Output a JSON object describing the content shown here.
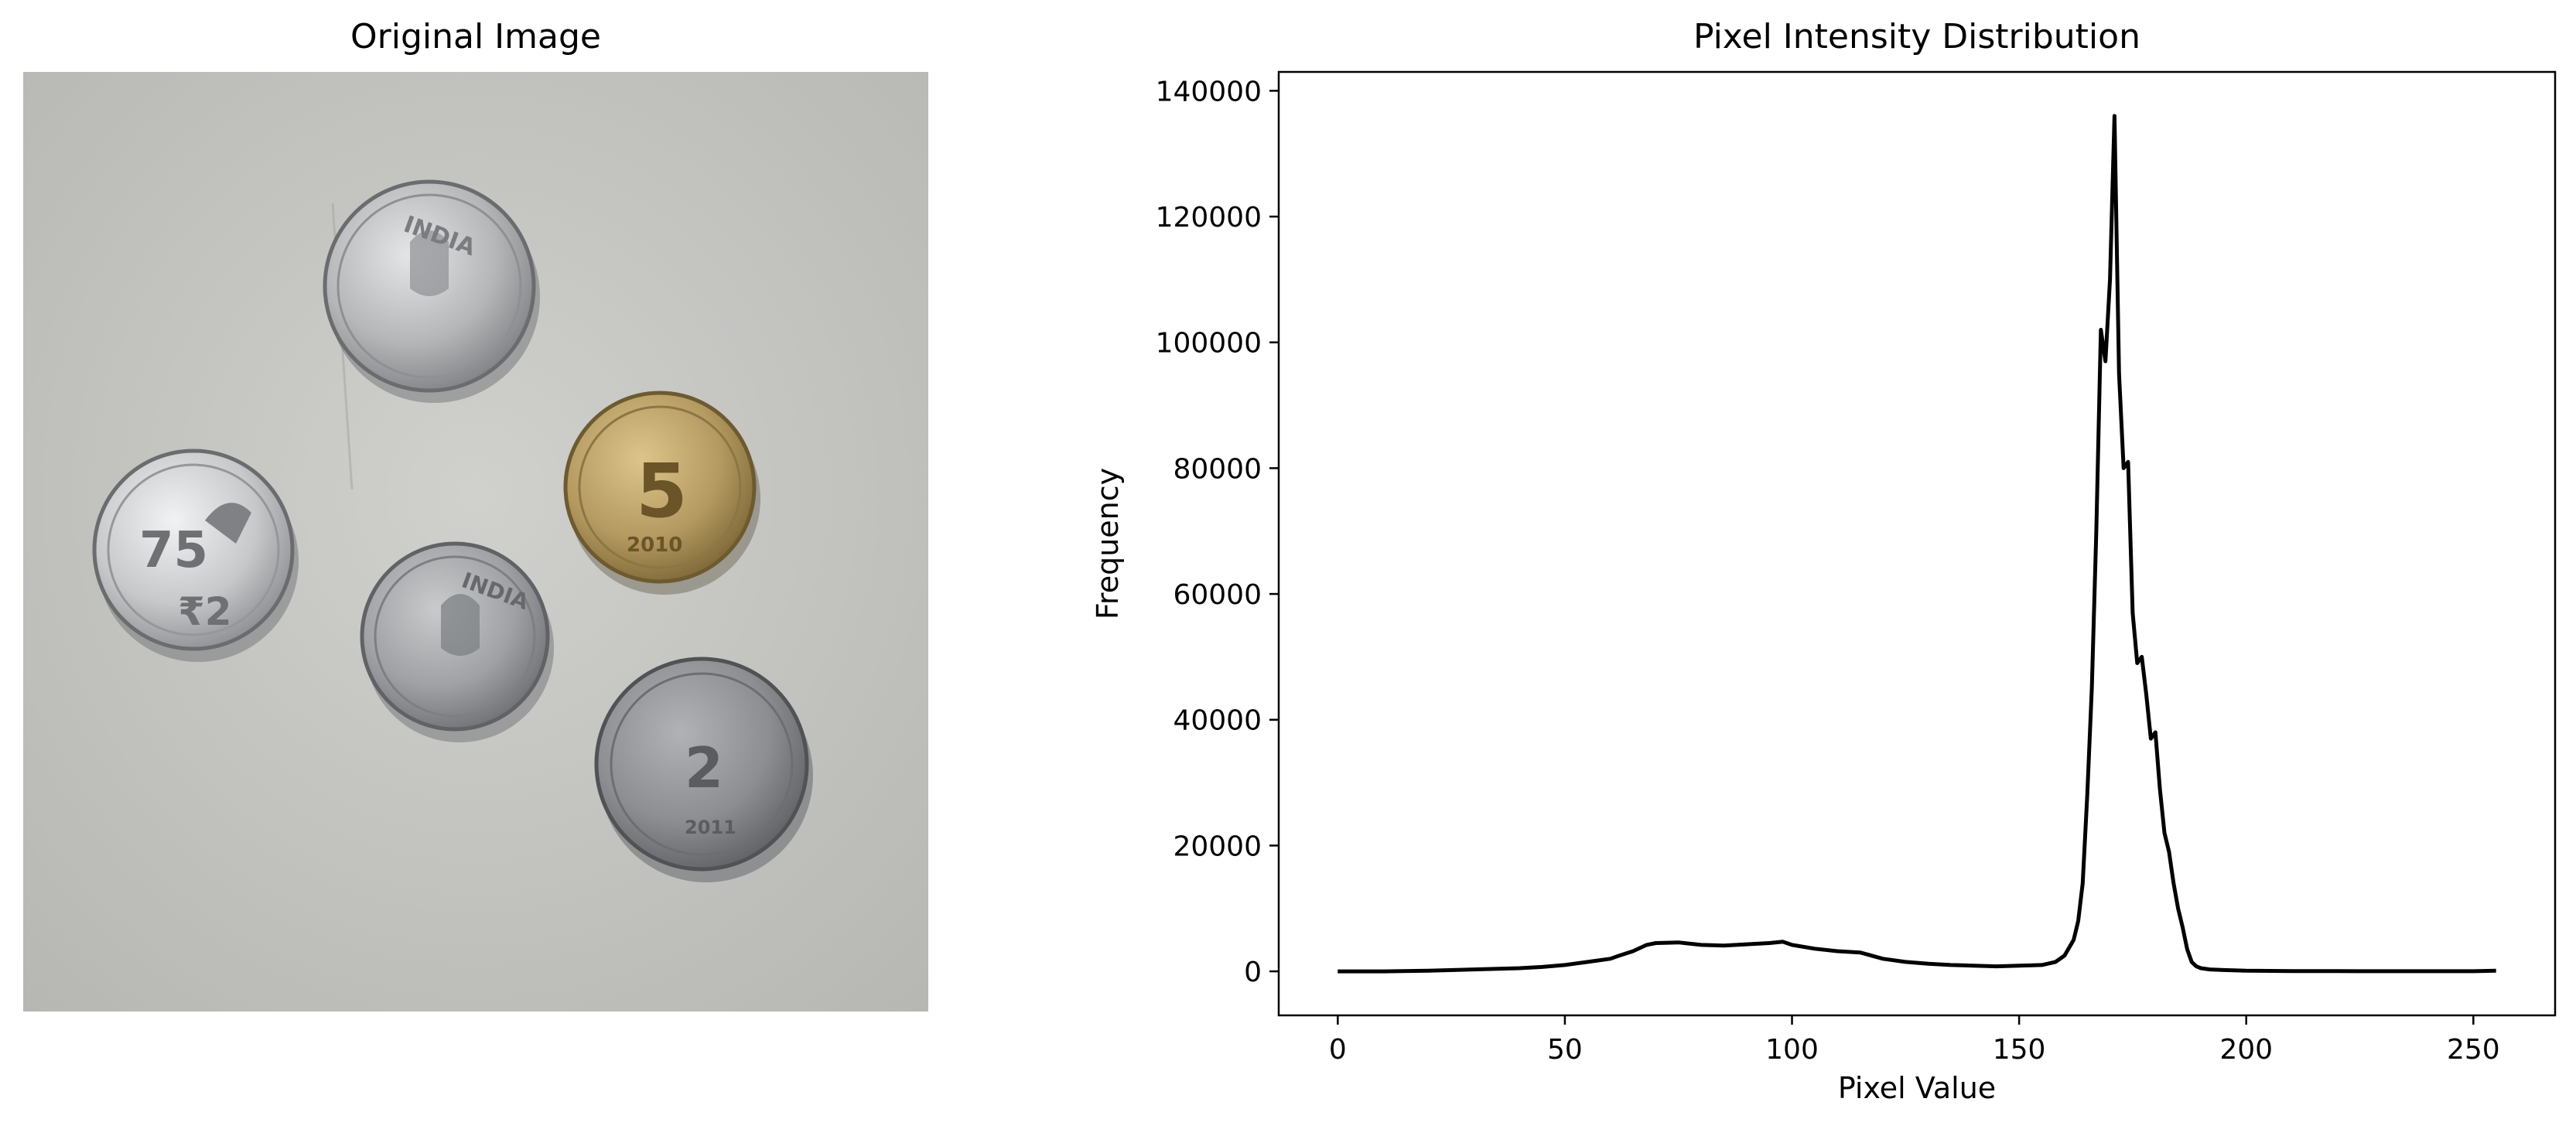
{
  "figure": {
    "left_title": "Original Image",
    "right_title": "Pixel Intensity Distribution"
  },
  "photo": {
    "background_color": "#c3c3c0",
    "coins": [
      {
        "label": "INDIA",
        "color": "#b4b6b8",
        "icon": "lion-capital-icon"
      },
      {
        "label": "75",
        "color": "#c6c8ca",
        "icon": "flag-icon"
      },
      {
        "label": "5",
        "color": "#b49a60",
        "icon": "five-rupees-icon"
      },
      {
        "label": "INDIA",
        "color": "#9fa1a4",
        "icon": "lion-capital-icon"
      },
      {
        "label": "2",
        "color": "#8c8e91",
        "icon": "two-rupees-icon"
      }
    ]
  },
  "chart_data": {
    "type": "line",
    "title": "Pixel Intensity Distribution",
    "xlabel": "Pixel Value",
    "ylabel": "Frequency",
    "xlim": [
      -13,
      268
    ],
    "ylim": [
      -7000,
      143000
    ],
    "xticks": [
      0,
      50,
      100,
      150,
      200,
      250
    ],
    "yticks": [
      0,
      20000,
      40000,
      60000,
      80000,
      100000,
      120000,
      140000
    ],
    "grid": false,
    "line_color": "#000000",
    "series": [
      {
        "x": [
          0,
          10,
          20,
          30,
          40,
          45,
          50,
          55,
          60,
          62,
          65,
          68,
          70,
          75,
          80,
          85,
          90,
          95,
          98,
          100,
          105,
          110,
          115,
          120,
          125,
          130,
          135,
          140,
          145,
          150,
          155,
          158,
          160,
          162,
          163,
          164,
          165,
          166,
          167,
          168,
          169,
          170,
          171,
          172,
          173,
          174,
          175,
          176,
          177,
          178,
          179,
          180,
          181,
          182,
          183,
          184,
          185,
          186,
          187,
          188,
          189,
          190,
          192,
          195,
          200,
          210,
          220,
          230,
          240,
          250,
          255
        ],
        "y": [
          0,
          0,
          100,
          300,
          500,
          700,
          1000,
          1500,
          2000,
          2500,
          3200,
          4200,
          4500,
          4600,
          4200,
          4100,
          4300,
          4500,
          4700,
          4200,
          3600,
          3200,
          3000,
          2000,
          1500,
          1200,
          1000,
          900,
          800,
          900,
          1000,
          1500,
          2500,
          5000,
          8000,
          14000,
          28000,
          45000,
          70000,
          102000,
          97000,
          110000,
          136000,
          95000,
          80000,
          81000,
          57000,
          49000,
          50000,
          44000,
          37000,
          38000,
          29000,
          22000,
          19000,
          14000,
          10000,
          7000,
          3500,
          1500,
          800,
          500,
          300,
          200,
          100,
          50,
          30,
          20,
          20,
          20,
          100
        ]
      }
    ]
  }
}
